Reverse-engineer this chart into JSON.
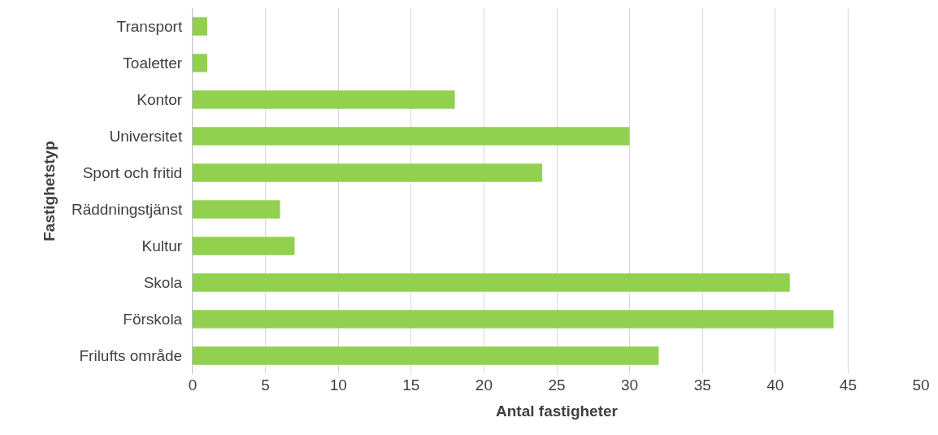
{
  "chart_data": {
    "type": "bar",
    "orientation": "horizontal",
    "categories": [
      "Transport",
      "Toaletter",
      "Kontor",
      "Universitet",
      "Sport och fritid",
      "Räddningstjänst",
      "Kultur",
      "Skola",
      "Förskola",
      "Frilufts område"
    ],
    "values": [
      1,
      1,
      18,
      30,
      24,
      6,
      7,
      41,
      44,
      32
    ],
    "color": "#92d050",
    "xlim": [
      0,
      50
    ],
    "xticks": [
      0,
      5,
      10,
      15,
      20,
      25,
      30,
      35,
      40,
      45,
      50
    ],
    "xlabel": "Antal fastigheter",
    "ylabel": "Fastighetstyp",
    "grid": "x",
    "legend": false
  }
}
